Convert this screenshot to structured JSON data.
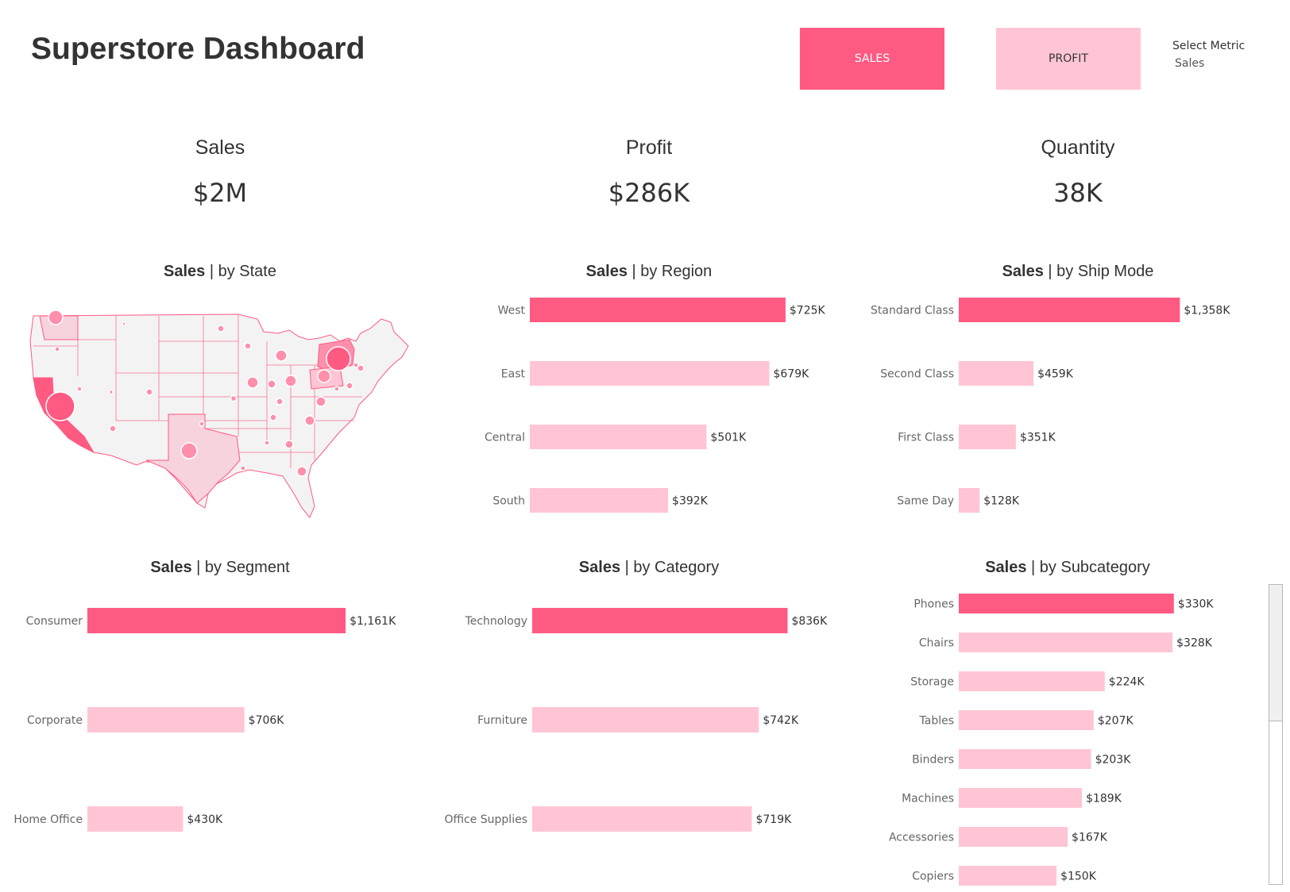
{
  "header": {
    "title": "Superstore Dashboard",
    "buttons": [
      {
        "label": "SALES",
        "active": true
      },
      {
        "label": "PROFIT",
        "active": false
      }
    ],
    "select_metric": {
      "label": "Select Metric",
      "value": "Sales"
    }
  },
  "colors": {
    "accent": "#ff5a82",
    "accent_light": "#ffc5d4",
    "text": "#333333",
    "axis_label": "#666666"
  },
  "kpis": [
    {
      "label": "Sales",
      "value": "$2M"
    },
    {
      "label": "Profit",
      "value": "$286K"
    },
    {
      "label": "Quantity",
      "value": "38K"
    }
  ],
  "panels": {
    "state": {
      "metric": "Sales",
      "suffix": " | by State"
    },
    "region": {
      "metric": "Sales",
      "suffix": " | by Region"
    },
    "ship_mode": {
      "metric": "Sales",
      "suffix": " | by Ship Mode"
    },
    "segment": {
      "metric": "Sales",
      "suffix": " | by Segment"
    },
    "category": {
      "metric": "Sales",
      "suffix": " | by Category"
    },
    "subcategory": {
      "metric": "Sales",
      "suffix": " | by Subcategory"
    }
  },
  "map": {
    "states_highlighted": [
      "California",
      "New York",
      "Texas",
      "Washington",
      "Pennsylvania"
    ]
  },
  "chart_data": [
    {
      "id": "region",
      "type": "bar",
      "orientation": "horizontal",
      "categories": [
        "West",
        "East",
        "Central",
        "South"
      ],
      "values": [
        725,
        679,
        501,
        392
      ],
      "labels": [
        "$725K",
        "$679K",
        "$501K",
        "$392K"
      ],
      "unit": "K USD",
      "highlight_index": 0
    },
    {
      "id": "ship_mode",
      "type": "bar",
      "orientation": "horizontal",
      "categories": [
        "Standard Class",
        "Second Class",
        "First Class",
        "Same Day"
      ],
      "values": [
        1358,
        459,
        351,
        128
      ],
      "labels": [
        "$1,358K",
        "$459K",
        "$351K",
        "$128K"
      ],
      "unit": "K USD",
      "highlight_index": 0
    },
    {
      "id": "segment",
      "type": "bar",
      "orientation": "horizontal",
      "categories": [
        "Consumer",
        "Corporate",
        "Home Office"
      ],
      "values": [
        1161,
        706,
        430
      ],
      "labels": [
        "$1,161K",
        "$706K",
        "$430K"
      ],
      "unit": "K USD",
      "highlight_index": 0
    },
    {
      "id": "category",
      "type": "bar",
      "orientation": "horizontal",
      "categories": [
        "Technology",
        "Furniture",
        "Office Supplies"
      ],
      "values": [
        836,
        742,
        719
      ],
      "labels": [
        "$836K",
        "$742K",
        "$719K"
      ],
      "unit": "K USD",
      "highlight_index": 0
    },
    {
      "id": "subcategory",
      "type": "bar",
      "orientation": "horizontal",
      "categories": [
        "Phones",
        "Chairs",
        "Storage",
        "Tables",
        "Binders",
        "Machines",
        "Accessories",
        "Copiers"
      ],
      "values": [
        330,
        328,
        224,
        207,
        203,
        189,
        167,
        150
      ],
      "labels": [
        "$330K",
        "$328K",
        "$224K",
        "$207K",
        "$203K",
        "$189K",
        "$167K",
        "$150K"
      ],
      "unit": "K USD",
      "highlight_index": 0
    }
  ]
}
